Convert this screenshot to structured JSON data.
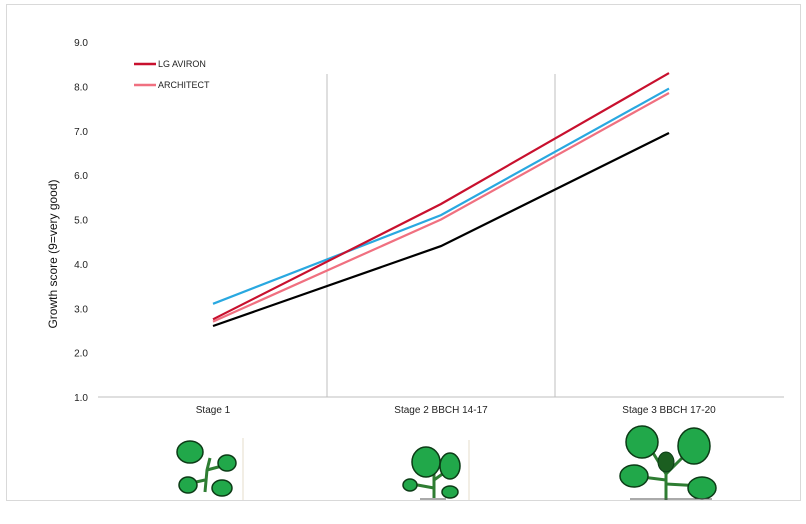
{
  "chart_data": {
    "type": "line",
    "categories": [
      "Stage 1",
      "Stage 2 BBCH 14-17",
      "Stage 3 BBCH 17-20"
    ],
    "ylabel": "Growth score (9=very good)",
    "xlabel": "",
    "ylim": [
      1.0,
      9.0
    ],
    "yticks": [
      "1.0",
      "2.0",
      "3.0",
      "4.0",
      "5.0",
      "6.0",
      "7.0",
      "8.0",
      "9.0"
    ],
    "grid": false,
    "legend_position": "top-left",
    "series": [
      {
        "name": "LG AVIRON",
        "color": "#c8102e",
        "values": [
          2.75,
          5.35,
          8.3
        ]
      },
      {
        "name": "ARCHITECT",
        "color": "#f07080",
        "values": [
          2.7,
          5.0,
          7.85
        ]
      },
      {
        "color": "#29a8e0",
        "values": [
          3.1,
          5.1,
          7.95
        ]
      },
      {
        "color": "#000000",
        "values": [
          2.6,
          4.4,
          6.95
        ]
      }
    ]
  },
  "illustrations": [
    {
      "icon": "seedling-stage-1-icon"
    },
    {
      "icon": "seedling-stage-2-icon"
    },
    {
      "icon": "seedling-stage-3-icon"
    }
  ]
}
